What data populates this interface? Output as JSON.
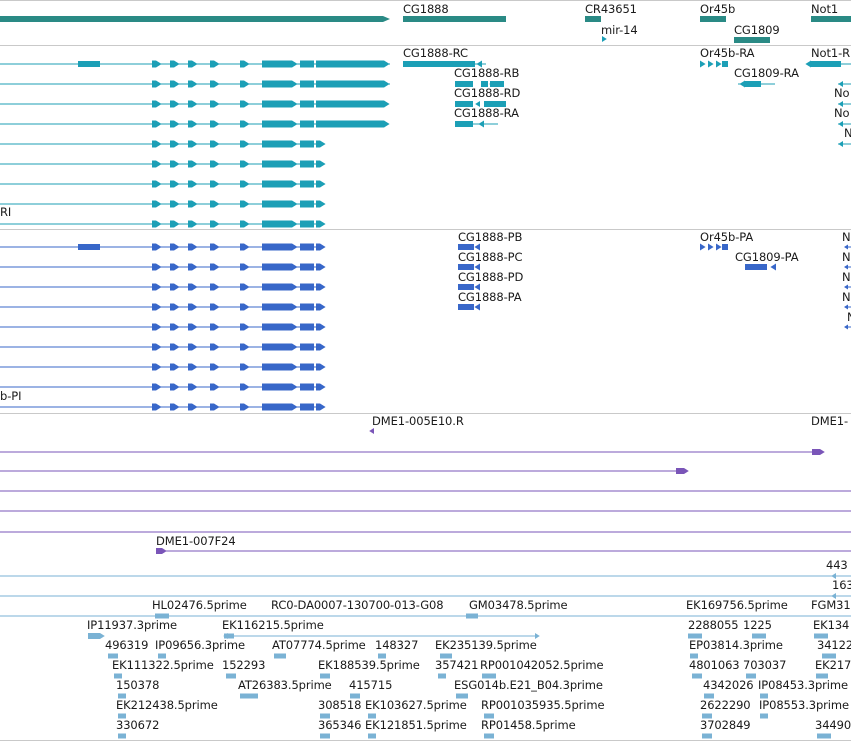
{
  "colors": {
    "genes": "#2a8a85",
    "transcripts_a": "#1c9fb6",
    "transcripts_b": "#3867c9",
    "cdna": "#7a55b8",
    "ests": "#7ab2d4",
    "section_line": "#c9c9c9"
  },
  "genes": [
    "CG1888",
    "CR43651",
    "mir-14",
    "Or45b",
    "CG1809",
    "Not1"
  ],
  "transcripts_a": [
    "CG1888-RC",
    "CG1888-RB",
    "CG1888-RD",
    "CG1888-RA",
    "Or45b-RA",
    "CG1809-RA",
    "Not1-R",
    "No",
    "No",
    "N",
    "RI"
  ],
  "transcripts_b": [
    "CG1888-PB",
    "CG1888-PC",
    "CG1888-PD",
    "CG1888-PA",
    "Or45b-PA",
    "CG1809-PA",
    "N",
    "N",
    "N",
    "N",
    "N",
    "b-PI"
  ],
  "cdna": [
    "DME1-005E10.R",
    "DME1-",
    "DME1-007F24"
  ],
  "track_small": [
    "443",
    "163"
  ],
  "ests": [
    "HL02476.5prime",
    "RC0-DA0007-130700-013-G08",
    "GM03478.5prime",
    "EK169756.5prime",
    "FGM31",
    "IP11937.3prime",
    "EK116215.5prime",
    "2288055",
    "1225",
    "EK134",
    "496319",
    "IP09656.3prime",
    "AT07774.5prime",
    "148327",
    "EK235139.5prime",
    "EP03814.3prime",
    "34122",
    "EK111322.5prime",
    "152293",
    "EK188539.5prime",
    "357421",
    "RP001042052.5prime",
    "4801063",
    "703037",
    "EK217",
    "150378",
    "AT26383.5prime",
    "415715",
    "ESG014b.E21_B04.3prime",
    "4342026",
    "IP08453.3prime",
    "EK212438.5prime",
    "308518",
    "EK103627.5prime",
    "RP001035935.5prime",
    "2622290",
    "IP08553.3prime",
    "330672",
    "365346",
    "EK121851.5prime",
    "RP01458.5prime",
    "3702849",
    "34490"
  ]
}
